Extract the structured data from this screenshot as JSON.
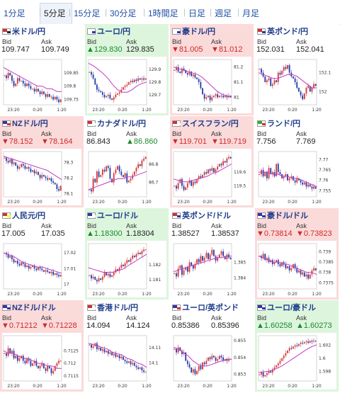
{
  "tabs": [
    {
      "label": "1分足",
      "active": false
    },
    {
      "label": "5分足",
      "active": true
    },
    {
      "label": "15分足",
      "active": false
    },
    {
      "label": "30分足",
      "active": false
    },
    {
      "label": "1時間足",
      "active": false
    },
    {
      "label": "日足",
      "active": false
    },
    {
      "label": "週足",
      "active": false
    },
    {
      "label": "月足",
      "active": false
    }
  ],
  "bid_label": "Bid",
  "ask_label": "Ask",
  "x_ticks": [
    "23:20",
    "0:20",
    "1:20"
  ],
  "colors": {
    "up_bg": "#ddf5dd",
    "down_bg": "#fbdada",
    "up_text": "#1a8a2c",
    "down_text": "#d02a2a",
    "candle_up": "#d63a3a",
    "candle_down": "#2b3fa8",
    "ma": "#c23cc2"
  },
  "pairs": [
    {
      "name": "米ドル/円",
      "trend": "neutral",
      "bid": "109.747",
      "ask": "109.749",
      "bid_dir": "none",
      "ask_dir": "none",
      "yticks": [
        "109.85",
        "109.8",
        "109.75"
      ],
      "chart_data": {
        "type": "candlestick",
        "ylim": [
          109.73,
          109.9
        ],
        "close": [
          109.84,
          109.83,
          109.85,
          109.84,
          109.82,
          109.8,
          109.81,
          109.83,
          109.82,
          109.82,
          109.81,
          109.8,
          109.81,
          109.8,
          109.79,
          109.79,
          109.78,
          109.79,
          109.78,
          109.77,
          109.78,
          109.77,
          109.76,
          109.77,
          109.76,
          109.76,
          109.75,
          109.76,
          109.75,
          109.74,
          109.75
        ],
        "ma": [
          109.87,
          109.86,
          109.85,
          109.84,
          109.83,
          109.82,
          109.81,
          109.8,
          109.8,
          109.79,
          109.79,
          109.78,
          109.78
        ]
      }
    },
    {
      "name": "ユーロ/円",
      "trend": "up",
      "bid": "▲129.830",
      "ask": "129.835",
      "bid_dir": "up",
      "ask_dir": "none",
      "yticks": [
        "129.9",
        "129.8",
        "129.7"
      ],
      "chart_data": {
        "type": "candlestick",
        "ylim": [
          129.62,
          129.98
        ],
        "close": [
          129.88,
          129.86,
          129.83,
          129.78,
          129.74,
          129.73,
          129.72,
          129.7,
          129.68,
          129.69,
          129.7,
          129.67,
          129.66,
          129.68,
          129.7,
          129.71,
          129.72,
          129.74,
          129.76,
          129.77,
          129.78,
          129.8,
          129.81,
          129.8,
          129.82,
          129.81,
          129.83,
          129.82,
          129.83,
          129.82,
          129.83
        ],
        "ma": [
          129.95,
          129.93,
          129.9,
          129.87,
          129.83,
          129.78,
          129.74,
          129.72,
          129.72,
          129.74,
          129.77,
          129.79,
          129.8
        ]
      }
    },
    {
      "name": "豪ドル/円",
      "trend": "down",
      "bid": "▼81.005",
      "ask": "▼81.012",
      "bid_dir": "down",
      "ask_dir": "down",
      "yticks": [
        "81.2",
        "81.1",
        "81"
      ],
      "chart_data": {
        "type": "candlestick",
        "ylim": [
          80.95,
          81.25
        ],
        "close": [
          81.18,
          81.2,
          81.17,
          81.16,
          81.19,
          81.18,
          81.16,
          81.15,
          81.17,
          81.14,
          81.15,
          81.13,
          81.12,
          81.1,
          81.06,
          81.02,
          80.99,
          81.0,
          81.01,
          80.98,
          81.0,
          81.01,
          81.02,
          81.0,
          81.01,
          81.01,
          81.0,
          81.01,
          81.0,
          81.01,
          81.0
        ],
        "ma": [
          81.2,
          81.19,
          81.18,
          81.17,
          81.16,
          81.15,
          81.13,
          81.1,
          81.07,
          81.04,
          81.02,
          81.01,
          81.0
        ]
      }
    },
    {
      "name": "英ポンド/円",
      "trend": "neutral",
      "bid": "152.031",
      "ask": "152.041",
      "bid_dir": "none",
      "ask_dir": "none",
      "yticks": [
        "152.1",
        "152"
      ],
      "chart_data": {
        "type": "candlestick",
        "ylim": [
          151.93,
          152.17
        ],
        "close": [
          152.12,
          152.1,
          152.08,
          152.05,
          152.06,
          152.07,
          152.03,
          152.04,
          152.06,
          152.05,
          152.1,
          152.09,
          152.11,
          152.13,
          152.12,
          152.14,
          152.1,
          152.08,
          152.07,
          152.05,
          152.02,
          152.0,
          151.98,
          151.96,
          151.99,
          152.02,
          152.03,
          152.0,
          152.02,
          152.04,
          152.03
        ],
        "ma": [
          152.1,
          152.09,
          152.08,
          152.07,
          152.07,
          152.08,
          152.09,
          152.09,
          152.08,
          152.06,
          152.04,
          152.02,
          152.02
        ]
      }
    },
    {
      "name": "NZドル/円",
      "trend": "down",
      "bid": "▼78.152",
      "ask": "▼78.164",
      "bid_dir": "down",
      "ask_dir": "down",
      "yticks": [
        "78.3",
        "78.2",
        "78.1"
      ],
      "chart_data": {
        "type": "candlestick",
        "ylim": [
          78.08,
          78.37
        ],
        "close": [
          78.33,
          78.31,
          78.3,
          78.32,
          78.29,
          78.3,
          78.28,
          78.26,
          78.27,
          78.29,
          78.28,
          78.26,
          78.27,
          78.26,
          78.24,
          78.25,
          78.23,
          78.24,
          78.22,
          78.2,
          78.22,
          78.21,
          78.2,
          78.19,
          78.2,
          78.18,
          78.17,
          78.16,
          78.13,
          78.12,
          78.15
        ],
        "ma": [
          78.34,
          78.33,
          78.32,
          78.31,
          78.3,
          78.29,
          78.28,
          78.27,
          78.26,
          78.25,
          78.23,
          78.21,
          78.19
        ]
      }
    },
    {
      "name": "カナダドル/円",
      "trend": "neutral",
      "bid": "86.843",
      "ask": "▲86.860",
      "bid_dir": "none",
      "ask_dir": "up",
      "yticks": [
        "86.8",
        "86.7"
      ],
      "chart_data": {
        "type": "candlestick",
        "ylim": [
          86.62,
          86.87
        ],
        "close": [
          86.66,
          86.65,
          86.72,
          86.7,
          86.76,
          86.73,
          86.74,
          86.77,
          86.76,
          86.79,
          86.78,
          86.72,
          86.7,
          86.75,
          86.77,
          86.79,
          86.76,
          86.74,
          86.73,
          86.75,
          86.7,
          86.71,
          86.72,
          86.74,
          86.76,
          86.78,
          86.8,
          86.79,
          86.82,
          86.83,
          86.84
        ],
        "ma": [
          86.66,
          86.67,
          86.68,
          86.69,
          86.7,
          86.71,
          86.72,
          86.72,
          86.73,
          86.73,
          86.74,
          86.75,
          86.76
        ]
      }
    },
    {
      "name": "スイスフラン/円",
      "trend": "down",
      "bid": "▼119.701",
      "ask": "▼119.719",
      "bid_dir": "down",
      "ask_dir": "down",
      "yticks": [
        "119.6",
        "119.5"
      ],
      "chart_data": {
        "type": "candlestick",
        "ylim": [
          119.42,
          119.75
        ],
        "close": [
          119.5,
          119.48,
          119.52,
          119.55,
          119.5,
          119.47,
          119.49,
          119.52,
          119.54,
          119.5,
          119.53,
          119.52,
          119.55,
          119.57,
          119.56,
          119.58,
          119.6,
          119.59,
          119.62,
          119.61,
          119.63,
          119.6,
          119.62,
          119.64,
          119.66,
          119.65,
          119.68,
          119.67,
          119.7,
          119.71,
          119.7
        ],
        "ma": [
          119.55,
          119.54,
          119.53,
          119.53,
          119.54,
          119.55,
          119.56,
          119.57,
          119.59,
          119.6,
          119.62,
          119.64,
          119.66
        ]
      }
    },
    {
      "name": "ランド/円",
      "trend": "neutral",
      "bid": "7.756",
      "ask": "7.769",
      "bid_dir": "none",
      "ask_dir": "none",
      "yticks": [
        "7.77",
        "7.765",
        "7.76",
        "7.755"
      ],
      "chart_data": {
        "type": "candlestick",
        "ylim": [
          7.752,
          7.774
        ],
        "close": [
          7.763,
          7.765,
          7.762,
          7.764,
          7.761,
          7.766,
          7.763,
          7.764,
          7.762,
          7.768,
          7.764,
          7.763,
          7.761,
          7.762,
          7.763,
          7.76,
          7.761,
          7.762,
          7.76,
          7.759,
          7.761,
          7.76,
          7.759,
          7.758,
          7.759,
          7.757,
          7.758,
          7.757,
          7.756,
          7.757,
          7.756
        ],
        "ma": [
          7.764,
          7.764,
          7.764,
          7.763,
          7.763,
          7.762,
          7.762,
          7.761,
          7.761,
          7.76,
          7.759,
          7.758,
          7.757
        ]
      }
    },
    {
      "name": "人民元/円",
      "trend": "neutral",
      "bid": "17.005",
      "ask": "17.035",
      "bid_dir": "none",
      "ask_dir": "none",
      "yticks": [
        "17.02",
        "17.01",
        "17"
      ],
      "chart_data": {
        "type": "candlestick",
        "ylim": [
          16.997,
          17.026
        ],
        "close": [
          17.02,
          17.019,
          17.017,
          17.018,
          17.016,
          17.014,
          17.015,
          17.013,
          17.012,
          17.014,
          17.013,
          17.011,
          17.012,
          17.01,
          17.011,
          17.012,
          17.01,
          17.009,
          17.011,
          17.01,
          17.009,
          17.008,
          17.009,
          17.008,
          17.007,
          17.008,
          17.006,
          17.007,
          17.006,
          17.005,
          17.006
        ],
        "ma": [
          17.02,
          17.019,
          17.018,
          17.016,
          17.014,
          17.013,
          17.012,
          17.011,
          17.011,
          17.01,
          17.009,
          17.008,
          17.007
        ]
      }
    },
    {
      "name": "ユーロ/ドル",
      "trend": "up",
      "bid": "▲1.18300",
      "ask": "1.18304",
      "bid_dir": "up",
      "ask_dir": "none",
      "yticks": [
        "1.182",
        "1.181"
      ],
      "chart_data": {
        "type": "candlestick",
        "ylim": [
          1.1804,
          1.1834
        ],
        "close": [
          1.1813,
          1.1811,
          1.1812,
          1.181,
          1.1809,
          1.1811,
          1.181,
          1.1812,
          1.1815,
          1.1813,
          1.1814,
          1.1812,
          1.1813,
          1.1815,
          1.1817,
          1.1816,
          1.1818,
          1.182,
          1.1819,
          1.1821,
          1.1823,
          1.1822,
          1.1824,
          1.1826,
          1.1825,
          1.1827,
          1.1828,
          1.1827,
          1.1829,
          1.183,
          1.183
        ],
        "ma": [
          1.1818,
          1.1817,
          1.1816,
          1.1815,
          1.1815,
          1.1815,
          1.1816,
          1.1817,
          1.1819,
          1.1821,
          1.1823,
          1.1825,
          1.1827
        ]
      }
    },
    {
      "name": "英ポンド/ドル",
      "trend": "neutral",
      "bid": "1.38527",
      "ask": "1.38537",
      "bid_dir": "none",
      "ask_dir": "none",
      "yticks": [
        "1.385",
        "1.384"
      ],
      "chart_data": {
        "type": "candlestick",
        "ylim": [
          1.3833,
          1.3862
        ],
        "close": [
          1.3843,
          1.3841,
          1.3846,
          1.3848,
          1.3842,
          1.3845,
          1.3847,
          1.3844,
          1.385,
          1.3848,
          1.3846,
          1.3849,
          1.3852,
          1.385,
          1.3854,
          1.3851,
          1.3853,
          1.3856,
          1.3852,
          1.3855,
          1.3858,
          1.3854,
          1.3851,
          1.3853,
          1.3855,
          1.3857,
          1.3854,
          1.3852,
          1.3855,
          1.3853,
          1.3852
        ],
        "ma": [
          1.3844,
          1.3845,
          1.3846,
          1.3847,
          1.3848,
          1.3849,
          1.385,
          1.3851,
          1.3852,
          1.3853,
          1.3853,
          1.3854,
          1.3854
        ]
      }
    },
    {
      "name": "豪ドル/ドル",
      "trend": "down",
      "bid": "▼0.73814",
      "ask": "▼0.73823",
      "bid_dir": "down",
      "ask_dir": "down",
      "yticks": [
        "0.739",
        "0.7385",
        "0.738",
        "0.7375"
      ],
      "chart_data": {
        "type": "candlestick",
        "ylim": [
          0.7372,
          0.7394
        ],
        "close": [
          0.7388,
          0.7387,
          0.7389,
          0.7386,
          0.7387,
          0.7385,
          0.7386,
          0.7384,
          0.7385,
          0.7386,
          0.7384,
          0.7383,
          0.7385,
          0.7384,
          0.7382,
          0.7383,
          0.7381,
          0.7382,
          0.7384,
          0.7382,
          0.738,
          0.7381,
          0.7379,
          0.738,
          0.7378,
          0.7379,
          0.7377,
          0.7379,
          0.7381,
          0.7382,
          0.7381
        ],
        "ma": [
          0.7388,
          0.7387,
          0.7386,
          0.7385,
          0.7385,
          0.7384,
          0.7384,
          0.7383,
          0.7382,
          0.7381,
          0.738,
          0.738,
          0.7379
        ]
      }
    },
    {
      "name": "NZドル/ドル",
      "trend": "down",
      "bid": "▼0.71212",
      "ask": "▼0.71228",
      "bid_dir": "down",
      "ask_dir": "down",
      "yticks": [
        "0.7125",
        "0.712",
        "0.7115"
      ],
      "chart_data": {
        "type": "candlestick",
        "ylim": [
          0.7113,
          0.7131
        ],
        "close": [
          0.7124,
          0.7123,
          0.7126,
          0.7124,
          0.7125,
          0.7122,
          0.7123,
          0.7121,
          0.7122,
          0.7123,
          0.7121,
          0.712,
          0.7122,
          0.7121,
          0.7119,
          0.712,
          0.7121,
          0.7119,
          0.7118,
          0.7119,
          0.712,
          0.7118,
          0.7117,
          0.7119,
          0.7118,
          0.7116,
          0.7117,
          0.7119,
          0.712,
          0.7121,
          0.7121
        ],
        "ma": [
          0.7125,
          0.7124,
          0.7124,
          0.7123,
          0.7122,
          0.7122,
          0.7121,
          0.712,
          0.712,
          0.7119,
          0.7119,
          0.7118,
          0.7118
        ]
      }
    },
    {
      "name": "香港ドル/円",
      "trend": "neutral",
      "bid": "14.094",
      "ask": "14.124",
      "bid_dir": "none",
      "ask_dir": "none",
      "yticks": [
        "14.11",
        "14.1"
      ],
      "chart_data": {
        "type": "candlestick",
        "ylim": [
          14.088,
          14.118
        ],
        "close": [
          14.112,
          14.11,
          14.111,
          14.113,
          14.109,
          14.11,
          14.108,
          14.109,
          14.107,
          14.108,
          14.106,
          14.107,
          14.105,
          14.106,
          14.104,
          14.105,
          14.103,
          14.104,
          14.102,
          14.101,
          14.1,
          14.101,
          14.099,
          14.1,
          14.098,
          14.097,
          14.096,
          14.097,
          14.095,
          14.094,
          14.094
        ],
        "ma": [
          14.113,
          14.112,
          14.111,
          14.11,
          14.109,
          14.107,
          14.106,
          14.105,
          14.103,
          14.102,
          14.1,
          14.099,
          14.097
        ]
      }
    },
    {
      "name": "ユーロ/英ポンド",
      "trend": "neutral",
      "bid": "0.85386",
      "ask": "0.85396",
      "bid_dir": "none",
      "ask_dir": "none",
      "yticks": [
        "0.855",
        "0.854",
        "0.853"
      ],
      "chart_data": {
        "type": "candlestick",
        "ylim": [
          0.8526,
          0.8553
        ],
        "close": [
          0.8545,
          0.8543,
          0.8546,
          0.8544,
          0.8542,
          0.8543,
          0.8538,
          0.8536,
          0.8534,
          0.8531,
          0.8533,
          0.853,
          0.8532,
          0.8535,
          0.8533,
          0.8537,
          0.8536,
          0.8538,
          0.854,
          0.8539,
          0.8541,
          0.854,
          0.8538,
          0.8539,
          0.8541,
          0.854,
          0.8538,
          0.8539,
          0.8538,
          0.8539,
          0.8539
        ],
        "ma": [
          0.8546,
          0.8545,
          0.8543,
          0.8541,
          0.8538,
          0.8536,
          0.8535,
          0.8535,
          0.8536,
          0.8537,
          0.8538,
          0.8539,
          0.8539
        ]
      }
    },
    {
      "name": "ユーロ/豪ドル",
      "trend": "up",
      "bid": "▲1.60258",
      "ask": "▲1.60273",
      "bid_dir": "up",
      "ask_dir": "up",
      "yticks": [
        "1.602",
        "1.6",
        "1.598"
      ],
      "chart_data": {
        "type": "candlestick",
        "ylim": [
          1.5965,
          1.6035
        ],
        "close": [
          1.5975,
          1.5978,
          1.5972,
          1.5974,
          1.5977,
          1.598,
          1.5978,
          1.5983,
          1.5986,
          1.5989,
          1.5992,
          1.5996,
          1.6,
          1.6004,
          1.6008,
          1.6012,
          1.6016,
          1.6015,
          1.6018,
          1.602,
          1.6019,
          1.6022,
          1.6024,
          1.6023,
          1.6025,
          1.6026,
          1.6024,
          1.6027,
          1.6026,
          1.6027,
          1.6026
        ],
        "ma": [
          1.5978,
          1.5979,
          1.598,
          1.5982,
          1.5985,
          1.5989,
          1.5994,
          1.5999,
          1.6004,
          1.6009,
          1.6014,
          1.6018,
          1.6021
        ]
      }
    }
  ]
}
